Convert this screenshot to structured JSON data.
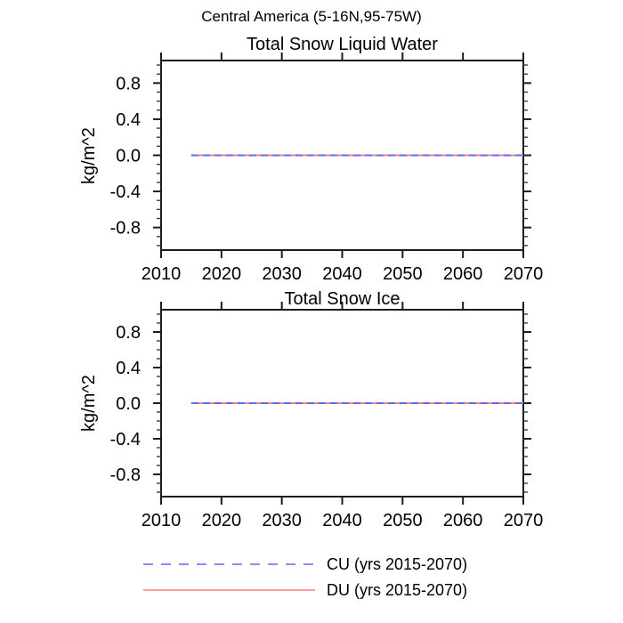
{
  "figure_title": "Central America (5-16N,95-75W)",
  "colors": {
    "axis": "#1c1c1c",
    "minor_tick": "#3a3a3a",
    "cu_blue": "#6666ff",
    "du_red": "#ff8080",
    "background": "#ffffff"
  },
  "legend": {
    "position": "bottom-center",
    "items": [
      {
        "label": "CU (yrs 2015-2070)",
        "color": "#6666ff",
        "style": "dashed"
      },
      {
        "label": "DU (yrs 2015-2070)",
        "color": "#ff8080",
        "style": "solid"
      }
    ]
  },
  "chart_data": [
    {
      "type": "line",
      "title": "Total Snow Liquid Water",
      "xlabel": "",
      "ylabel": "kg/m^2",
      "xlim": [
        2010,
        2070
      ],
      "ylim": [
        -1.05,
        1.05
      ],
      "xticks": [
        2010,
        2020,
        2030,
        2040,
        2050,
        2060,
        2070
      ],
      "yticks": [
        -0.8,
        -0.4,
        0.0,
        0.4,
        0.8
      ],
      "ytick_labels": [
        "-0.8",
        "-0.4",
        "0.0",
        "0.4",
        "0.8"
      ],
      "y_minor_step": 0.1,
      "grid": false,
      "series": [
        {
          "name": "DU (yrs 2015-2070)",
          "color": "#ff8080",
          "style": "solid",
          "x": [
            2015,
            2070
          ],
          "y": [
            0.0,
            0.0
          ]
        },
        {
          "name": "CU (yrs 2015-2070)",
          "color": "#6666ff",
          "style": "dashed",
          "x": [
            2015,
            2070
          ],
          "y": [
            0.0,
            0.0
          ]
        }
      ]
    },
    {
      "type": "line",
      "title": "Total Snow Ice",
      "xlabel": "",
      "ylabel": "kg/m^2",
      "xlim": [
        2010,
        2070
      ],
      "ylim": [
        -1.05,
        1.05
      ],
      "xticks": [
        2010,
        2020,
        2030,
        2040,
        2050,
        2060,
        2070
      ],
      "yticks": [
        -0.8,
        -0.4,
        0.0,
        0.4,
        0.8
      ],
      "ytick_labels": [
        "-0.8",
        "-0.4",
        "0.0",
        "0.4",
        "0.8"
      ],
      "y_minor_step": 0.1,
      "grid": false,
      "series": [
        {
          "name": "DU (yrs 2015-2070)",
          "color": "#ff8080",
          "style": "solid",
          "x": [
            2015,
            2070
          ],
          "y": [
            0.0,
            0.0
          ]
        },
        {
          "name": "CU (yrs 2015-2070)",
          "color": "#6666ff",
          "style": "dashed",
          "x": [
            2015,
            2070
          ],
          "y": [
            0.0,
            0.0
          ]
        }
      ]
    }
  ]
}
